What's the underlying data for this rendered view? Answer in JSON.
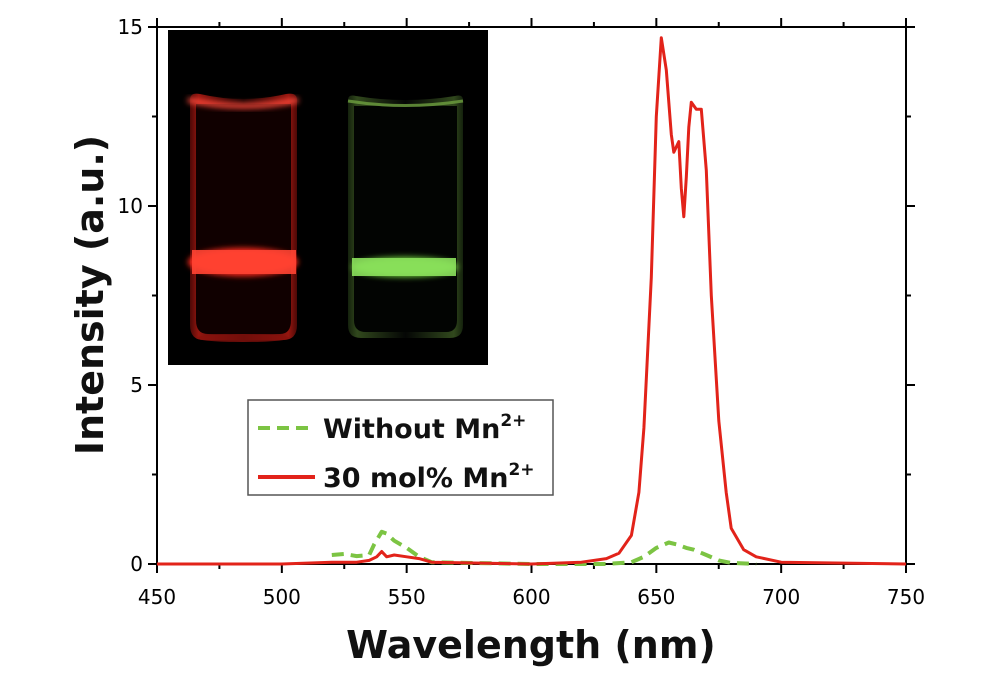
{
  "chart_data": {
    "type": "line",
    "title": "",
    "xlabel": "Wavelength (nm)",
    "ylabel": "Intensity (a.u.)",
    "xlim": [
      450,
      750
    ],
    "ylim": [
      0,
      15
    ],
    "x_ticks": [
      450,
      500,
      550,
      600,
      650,
      700,
      750
    ],
    "y_ticks": [
      0,
      5,
      10,
      15
    ],
    "legend": {
      "position": "middle-left",
      "entries": [
        {
          "label": "Without Mn",
          "superscript": "2+",
          "style": "dashed",
          "color": "#7cc443"
        },
        {
          "label": "30 mol% Mn",
          "superscript": "2+",
          "style": "solid",
          "color": "#e2231a"
        }
      ]
    },
    "series": [
      {
        "name": "Without Mn2+",
        "color": "#7cc443",
        "style": "dashed",
        "x": [
          520,
          525,
          530,
          535,
          537,
          540,
          542,
          545,
          550,
          555,
          560,
          600,
          630,
          640,
          645,
          650,
          655,
          658,
          662,
          665,
          670,
          675,
          680,
          690
        ],
        "y": [
          0.25,
          0.28,
          0.22,
          0.25,
          0.55,
          0.9,
          0.85,
          0.65,
          0.45,
          0.2,
          0.05,
          0.0,
          0.0,
          0.05,
          0.2,
          0.45,
          0.6,
          0.55,
          0.45,
          0.4,
          0.25,
          0.1,
          0.03,
          0.0
        ]
      },
      {
        "name": "30 mol% Mn2+",
        "color": "#e2231a",
        "style": "solid",
        "x": [
          450,
          500,
          520,
          530,
          535,
          538,
          540,
          542,
          545,
          550,
          555,
          560,
          600,
          620,
          630,
          635,
          640,
          643,
          645,
          648,
          650,
          652,
          654,
          656,
          657,
          659,
          660,
          661,
          662,
          663,
          664,
          666,
          668,
          670,
          672,
          675,
          678,
          680,
          685,
          690,
          700,
          750
        ],
        "y": [
          0.0,
          0.0,
          0.05,
          0.05,
          0.1,
          0.2,
          0.35,
          0.2,
          0.25,
          0.2,
          0.15,
          0.05,
          0.0,
          0.05,
          0.15,
          0.3,
          0.8,
          2.0,
          3.8,
          8.0,
          12.5,
          14.7,
          13.8,
          12.0,
          11.5,
          11.8,
          10.5,
          9.7,
          10.8,
          12.2,
          12.9,
          12.7,
          12.7,
          11.0,
          7.5,
          4.0,
          2.0,
          1.0,
          0.4,
          0.2,
          0.05,
          0.0
        ]
      }
    ],
    "inset": {
      "description": "photo of two vials under UV light",
      "vials": [
        {
          "glow_color": "#ff3b2e"
        },
        {
          "glow_color": "#86e05a"
        }
      ]
    }
  }
}
